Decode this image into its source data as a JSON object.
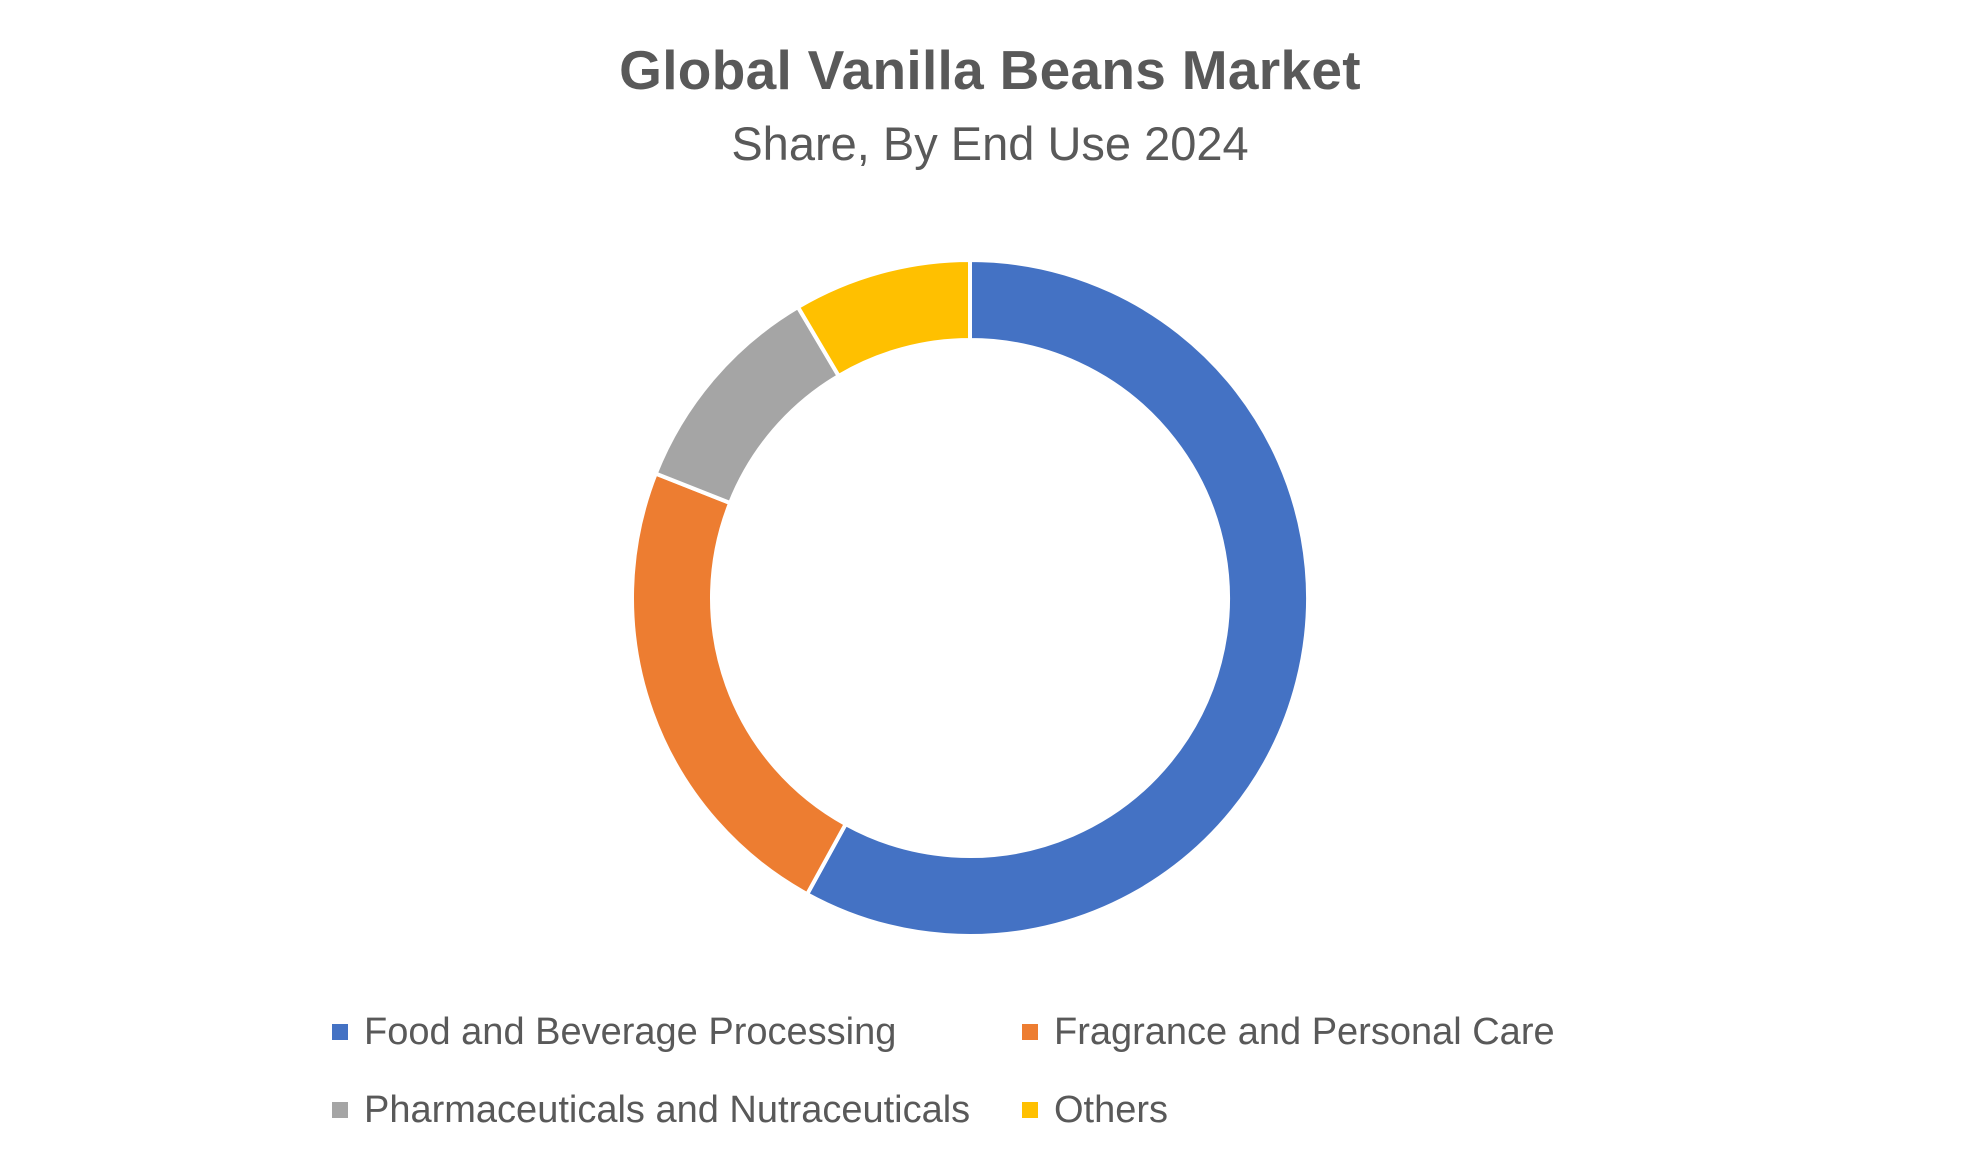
{
  "chart_data": {
    "type": "pie",
    "variant": "donut",
    "title": "Global Vanilla Beans Market",
    "subtitle": "Share, By End Use 2024",
    "categories": [
      "Food and Beverage Processing",
      "Fragrance and Personal Care",
      "Pharmaceuticals and Nutraceuticals",
      "Others"
    ],
    "values": [
      58,
      23,
      10.5,
      8.5
    ],
    "colors": [
      "#4472C4",
      "#ED7D31",
      "#A5A5A5",
      "#FFC000"
    ],
    "legend_position": "bottom",
    "start_angle_deg": 0,
    "direction": "clockwise"
  }
}
